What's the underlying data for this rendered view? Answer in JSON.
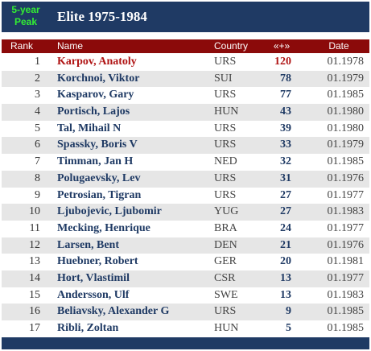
{
  "header": {
    "badge_line1": "5-year",
    "badge_line2": "Peak",
    "title": "Elite 1975-1984"
  },
  "columns": {
    "rank": "Rank",
    "name": "Name",
    "country": "Country",
    "score": "«+»",
    "date": "Date"
  },
  "colors": {
    "header_bar": "#1f3a64",
    "column_header": "#8b0a0a",
    "badge_text": "#33ee33",
    "name_text": "#1f3a64",
    "first_place_text": "#b01515",
    "row_alternate": "#e6e6e6"
  },
  "rows": [
    {
      "rank": "1",
      "name": "Karpov, Anatoly",
      "country": "URS",
      "score": "120",
      "date": "01.1978"
    },
    {
      "rank": "2",
      "name": "Korchnoi, Viktor",
      "country": "SUI",
      "score": "78",
      "date": "01.1979"
    },
    {
      "rank": "3",
      "name": "Kasparov, Gary",
      "country": "URS",
      "score": "77",
      "date": "01.1985"
    },
    {
      "rank": "4",
      "name": "Portisch, Lajos",
      "country": "HUN",
      "score": "43",
      "date": "01.1980"
    },
    {
      "rank": "5",
      "name": "Tal, Mihail N",
      "country": "URS",
      "score": "39",
      "date": "01.1980"
    },
    {
      "rank": "6",
      "name": "Spassky, Boris V",
      "country": "URS",
      "score": "33",
      "date": "01.1979"
    },
    {
      "rank": "7",
      "name": "Timman, Jan H",
      "country": "NED",
      "score": "32",
      "date": "01.1985"
    },
    {
      "rank": "8",
      "name": "Polugaevsky, Lev",
      "country": "URS",
      "score": "31",
      "date": "01.1976"
    },
    {
      "rank": "9",
      "name": "Petrosian, Tigran",
      "country": "URS",
      "score": "27",
      "date": "01.1977"
    },
    {
      "rank": "10",
      "name": "Ljubojevic, Ljubomir",
      "country": "YUG",
      "score": "27",
      "date": "01.1983"
    },
    {
      "rank": "11",
      "name": "Mecking, Henrique",
      "country": "BRA",
      "score": "24",
      "date": "01.1977"
    },
    {
      "rank": "12",
      "name": "Larsen, Bent",
      "country": "DEN",
      "score": "21",
      "date": "01.1976"
    },
    {
      "rank": "13",
      "name": "Huebner, Robert",
      "country": "GER",
      "score": "20",
      "date": "01.1981"
    },
    {
      "rank": "14",
      "name": "Hort, Vlastimil",
      "country": "CSR",
      "score": "13",
      "date": "01.1977"
    },
    {
      "rank": "15",
      "name": "Andersson, Ulf",
      "country": "SWE",
      "score": "13",
      "date": "01.1983"
    },
    {
      "rank": "16",
      "name": "Beliavsky, Alexander G",
      "country": "URS",
      "score": "9",
      "date": "01.1985"
    },
    {
      "rank": "17",
      "name": "Ribli, Zoltan",
      "country": "HUN",
      "score": "5",
      "date": "01.1985"
    }
  ]
}
